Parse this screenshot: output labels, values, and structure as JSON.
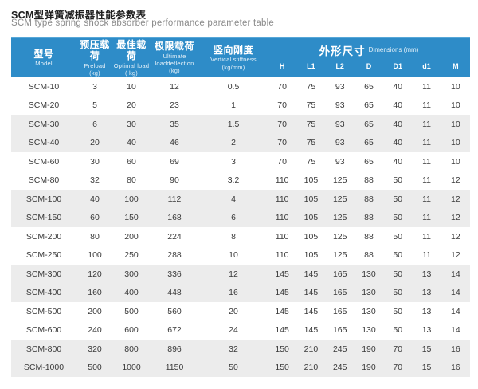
{
  "page": {
    "title_zh": "SCM型弹簧减振器性能参数表",
    "title_en": "SCM type spring shock absorber performance parameter table"
  },
  "colors": {
    "header_blue": "#2e8cc8",
    "header_blue_top_edge": "#58a8d8",
    "stripe_gray": "#ececec",
    "title_text": "#1f1f1f",
    "subtitle_text": "#8b8b8b",
    "cell_text": "#3a3a3a"
  },
  "table": {
    "columns": [
      {
        "zh": "型号",
        "en": "Model",
        "unit": ""
      },
      {
        "zh": "预压载荷",
        "en": "Preload",
        "unit": "(kg)"
      },
      {
        "zh": "最佳载荷",
        "en": "Optimal load",
        "unit": "( kg)"
      },
      {
        "zh": "极限载荷",
        "en": "Ultimate loaddeflection",
        "unit": "(kg)"
      },
      {
        "zh": "竖向刚度",
        "en": "Vertical stiffness",
        "unit": "(kg/mm)"
      }
    ],
    "dim_group": {
      "zh": "外形尺寸",
      "en": "Dimensions (mm)"
    },
    "dim_columns": [
      "H",
      "L1",
      "L2",
      "D",
      "D1",
      "d1",
      "M"
    ],
    "rows": [
      [
        "SCM-10",
        "3",
        "10",
        "12",
        "0.5",
        "70",
        "75",
        "93",
        "65",
        "40",
        "11",
        "10"
      ],
      [
        "SCM-20",
        "5",
        "20",
        "23",
        "1",
        "70",
        "75",
        "93",
        "65",
        "40",
        "11",
        "10"
      ],
      [
        "SCM-30",
        "6",
        "30",
        "35",
        "1.5",
        "70",
        "75",
        "93",
        "65",
        "40",
        "11",
        "10"
      ],
      [
        "SCM-40",
        "20",
        "40",
        "46",
        "2",
        "70",
        "75",
        "93",
        "65",
        "40",
        "11",
        "10"
      ],
      [
        "SCM-60",
        "30",
        "60",
        "69",
        "3",
        "70",
        "75",
        "93",
        "65",
        "40",
        "11",
        "10"
      ],
      [
        "SCM-80",
        "32",
        "80",
        "90",
        "3.2",
        "110",
        "105",
        "125",
        "88",
        "50",
        "11",
        "12"
      ],
      [
        "SCM-100",
        "40",
        "100",
        "112",
        "4",
        "110",
        "105",
        "125",
        "88",
        "50",
        "11",
        "12"
      ],
      [
        "SCM-150",
        "60",
        "150",
        "168",
        "6",
        "110",
        "105",
        "125",
        "88",
        "50",
        "11",
        "12"
      ],
      [
        "SCM-200",
        "80",
        "200",
        "224",
        "8",
        "110",
        "105",
        "125",
        "88",
        "50",
        "11",
        "12"
      ],
      [
        "SCM-250",
        "100",
        "250",
        "288",
        "10",
        "110",
        "105",
        "125",
        "88",
        "50",
        "11",
        "12"
      ],
      [
        "SCM-300",
        "120",
        "300",
        "336",
        "12",
        "145",
        "145",
        "165",
        "130",
        "50",
        "13",
        "14"
      ],
      [
        "SCM-400",
        "160",
        "400",
        "448",
        "16",
        "145",
        "145",
        "165",
        "130",
        "50",
        "13",
        "14"
      ],
      [
        "SCM-500",
        "200",
        "500",
        "560",
        "20",
        "145",
        "145",
        "165",
        "130",
        "50",
        "13",
        "14"
      ],
      [
        "SCM-600",
        "240",
        "600",
        "672",
        "24",
        "145",
        "145",
        "165",
        "130",
        "50",
        "13",
        "14"
      ],
      [
        "SCM-800",
        "320",
        "800",
        "896",
        "32",
        "150",
        "210",
        "245",
        "190",
        "70",
        "15",
        "16"
      ],
      [
        "SCM-1000",
        "500",
        "1000",
        "1150",
        "50",
        "150",
        "210",
        "245",
        "190",
        "70",
        "15",
        "16"
      ]
    ]
  }
}
